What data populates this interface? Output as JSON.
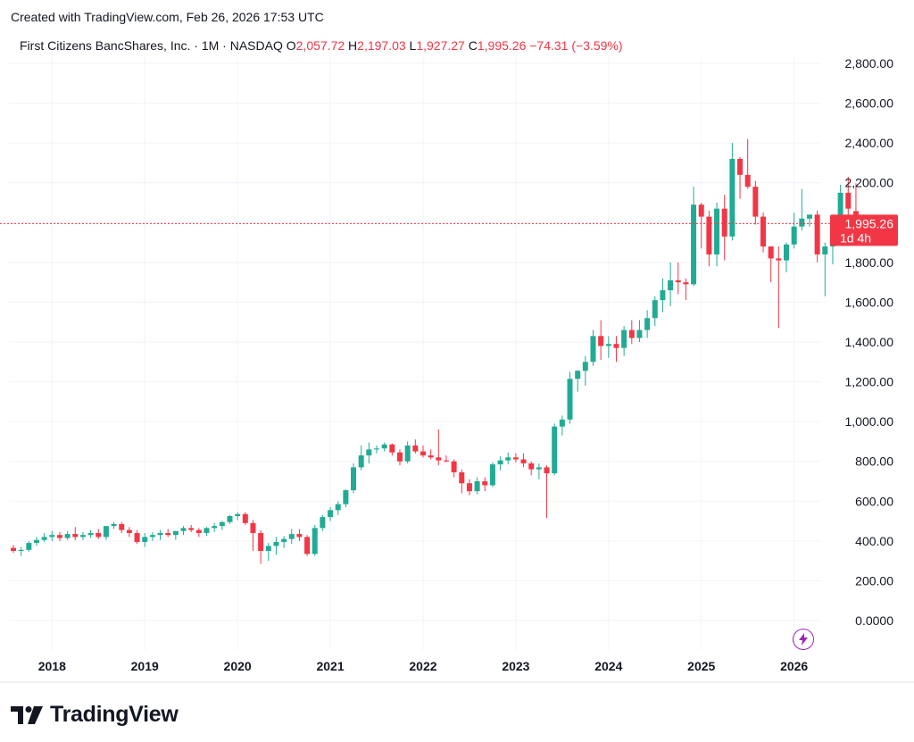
{
  "header": {
    "created": "Created with TradingView.com, Feb 26, 2026 17:53 UTC"
  },
  "legend": {
    "symbol": "First Citizens BancShares, Inc. · 1M · NASDAQ",
    "o_label": "O",
    "o_value": "2,057.72",
    "h_label": "H",
    "h_value": "2,197.03",
    "l_label": "L",
    "l_value": "1,927.27",
    "c_label": "C",
    "c_value": "1,995.26",
    "change": "−74.31 (−3.59%)"
  },
  "price_tag": {
    "price": "1,995.26",
    "countdown": "1d 4h"
  },
  "footer": {
    "brand": "TradingView"
  },
  "icons": {
    "bolt": "lightning-bolt-icon",
    "logo": "tradingview-logo-icon"
  },
  "colors": {
    "up": "#22ab94",
    "down": "#f23645",
    "grid": "#f0f3fa",
    "price_line": "#f23645",
    "accent": "#9c27b0"
  },
  "chart_data": {
    "type": "candlestick",
    "interval": "1M",
    "ylim": [
      -50,
      2900
    ],
    "y_ticks": [
      {
        "v": 2800,
        "t": "2,800.00"
      },
      {
        "v": 2600,
        "t": "2,600.00"
      },
      {
        "v": 2400,
        "t": "2,400.00"
      },
      {
        "v": 2200,
        "t": "2,200.00"
      },
      {
        "v": 2000,
        "t": "2,000.00"
      },
      {
        "v": 1800,
        "t": "1,800.00"
      },
      {
        "v": 1600,
        "t": "1,600.00"
      },
      {
        "v": 1400,
        "t": "1,400.00"
      },
      {
        "v": 1200,
        "t": "1,200.00"
      },
      {
        "v": 1000,
        "t": "1,000.00"
      },
      {
        "v": 800,
        "t": "800.00"
      },
      {
        "v": 600,
        "t": "600.00"
      },
      {
        "v": 400,
        "t": "400.00"
      },
      {
        "v": 200,
        "t": "200.00"
      },
      {
        "v": 0,
        "t": "0.0000"
      }
    ],
    "x_ticks": [
      {
        "i": 5,
        "t": "2018"
      },
      {
        "i": 17,
        "t": "2019"
      },
      {
        "i": 29,
        "t": "2020"
      },
      {
        "i": 41,
        "t": "2021"
      },
      {
        "i": 53,
        "t": "2022"
      },
      {
        "i": 65,
        "t": "2023"
      },
      {
        "i": 77,
        "t": "2024"
      },
      {
        "i": 89,
        "t": "2025"
      },
      {
        "i": 101,
        "t": "2026"
      }
    ],
    "last_price": 1995.26,
    "candles": [
      [
        365,
        380,
        340,
        350
      ],
      [
        350,
        370,
        325,
        355
      ],
      [
        355,
        400,
        345,
        390
      ],
      [
        390,
        420,
        375,
        405
      ],
      [
        405,
        440,
        395,
        420
      ],
      [
        420,
        450,
        400,
        430
      ],
      [
        430,
        445,
        400,
        415
      ],
      [
        415,
        450,
        405,
        435
      ],
      [
        435,
        470,
        405,
        420
      ],
      [
        420,
        445,
        405,
        430
      ],
      [
        430,
        455,
        415,
        440
      ],
      [
        440,
        460,
        410,
        420
      ],
      [
        420,
        470,
        405,
        475
      ],
      [
        475,
        495,
        460,
        485
      ],
      [
        485,
        495,
        440,
        455
      ],
      [
        455,
        470,
        420,
        440
      ],
      [
        440,
        455,
        385,
        395
      ],
      [
        395,
        440,
        370,
        420
      ],
      [
        420,
        445,
        400,
        430
      ],
      [
        430,
        455,
        405,
        440
      ],
      [
        440,
        460,
        420,
        430
      ],
      [
        430,
        450,
        405,
        450
      ],
      [
        450,
        475,
        430,
        465
      ],
      [
        465,
        480,
        445,
        455
      ],
      [
        455,
        465,
        420,
        440
      ],
      [
        440,
        470,
        425,
        465
      ],
      [
        465,
        490,
        445,
        475
      ],
      [
        475,
        500,
        455,
        495
      ],
      [
        495,
        530,
        485,
        525
      ],
      [
        525,
        545,
        505,
        535
      ],
      [
        535,
        545,
        480,
        490
      ],
      [
        490,
        505,
        350,
        440
      ],
      [
        440,
        455,
        285,
        350
      ],
      [
        350,
        390,
        300,
        375
      ],
      [
        375,
        420,
        330,
        395
      ],
      [
        395,
        425,
        365,
        410
      ],
      [
        410,
        460,
        385,
        435
      ],
      [
        435,
        460,
        400,
        420
      ],
      [
        420,
        430,
        325,
        335
      ],
      [
        335,
        480,
        325,
        465
      ],
      [
        465,
        530,
        450,
        520
      ],
      [
        520,
        570,
        500,
        555
      ],
      [
        555,
        600,
        530,
        585
      ],
      [
        585,
        660,
        570,
        655
      ],
      [
        655,
        790,
        640,
        770
      ],
      [
        770,
        880,
        755,
        830
      ],
      [
        830,
        895,
        790,
        860
      ],
      [
        860,
        880,
        840,
        865
      ],
      [
        865,
        895,
        850,
        885
      ],
      [
        885,
        890,
        830,
        845
      ],
      [
        845,
        860,
        780,
        800
      ],
      [
        800,
        900,
        790,
        880
      ],
      [
        880,
        910,
        840,
        850
      ],
      [
        850,
        880,
        820,
        830
      ],
      [
        830,
        860,
        810,
        820
      ],
      [
        820,
        960,
        780,
        805
      ],
      [
        805,
        830,
        795,
        800
      ],
      [
        800,
        810,
        720,
        745
      ],
      [
        745,
        760,
        640,
        690
      ],
      [
        690,
        710,
        630,
        650
      ],
      [
        650,
        720,
        635,
        700
      ],
      [
        700,
        720,
        650,
        680
      ],
      [
        680,
        795,
        670,
        785
      ],
      [
        785,
        825,
        755,
        805
      ],
      [
        805,
        845,
        785,
        820
      ],
      [
        820,
        840,
        795,
        810
      ],
      [
        810,
        840,
        770,
        790
      ],
      [
        790,
        800,
        730,
        760
      ],
      [
        760,
        790,
        710,
        770
      ],
      [
        770,
        780,
        515,
        740
      ],
      [
        740,
        990,
        730,
        975
      ],
      [
        975,
        1030,
        930,
        1010
      ],
      [
        1010,
        1250,
        990,
        1215
      ],
      [
        1215,
        1260,
        1150,
        1255
      ],
      [
        1255,
        1330,
        1180,
        1300
      ],
      [
        1300,
        1460,
        1280,
        1430
      ],
      [
        1430,
        1510,
        1310,
        1380
      ],
      [
        1380,
        1430,
        1320,
        1390
      ],
      [
        1390,
        1430,
        1300,
        1370
      ],
      [
        1370,
        1480,
        1330,
        1460
      ],
      [
        1460,
        1510,
        1390,
        1420
      ],
      [
        1420,
        1510,
        1400,
        1460
      ],
      [
        1460,
        1560,
        1420,
        1520
      ],
      [
        1520,
        1630,
        1480,
        1610
      ],
      [
        1610,
        1720,
        1550,
        1660
      ],
      [
        1660,
        1800,
        1580,
        1710
      ],
      [
        1710,
        1800,
        1640,
        1700
      ],
      [
        1700,
        1720,
        1610,
        1690
      ],
      [
        1690,
        2180,
        1680,
        2090
      ],
      [
        2090,
        2100,
        1870,
        2030
      ],
      [
        2030,
        2060,
        1780,
        1840
      ],
      [
        1840,
        2100,
        1780,
        2070
      ],
      [
        2070,
        2140,
        1810,
        1930
      ],
      [
        1930,
        2400,
        1910,
        2320
      ],
      [
        2320,
        2330,
        2120,
        2240
      ],
      [
        2240,
        2420,
        2170,
        2180
      ],
      [
        2180,
        2210,
        1990,
        2030
      ],
      [
        2030,
        2050,
        1850,
        1880
      ],
      [
        1880,
        1880,
        1700,
        1820
      ],
      [
        1820,
        1880,
        1470,
        1810
      ],
      [
        1810,
        1900,
        1750,
        1890
      ],
      [
        1890,
        2050,
        1870,
        1980
      ],
      [
        1980,
        2170,
        1960,
        2020
      ],
      [
        2020,
        2040,
        1980,
        2040
      ],
      [
        2040,
        2060,
        1800,
        1840
      ],
      [
        1840,
        1900,
        1630,
        1880
      ],
      [
        1880,
        1960,
        1790,
        1940
      ],
      [
        1940,
        2190,
        1930,
        2150
      ],
      [
        2150,
        2230,
        1980,
        2070
      ],
      [
        2057.72,
        2197.03,
        1927.27,
        1995.26
      ]
    ]
  }
}
